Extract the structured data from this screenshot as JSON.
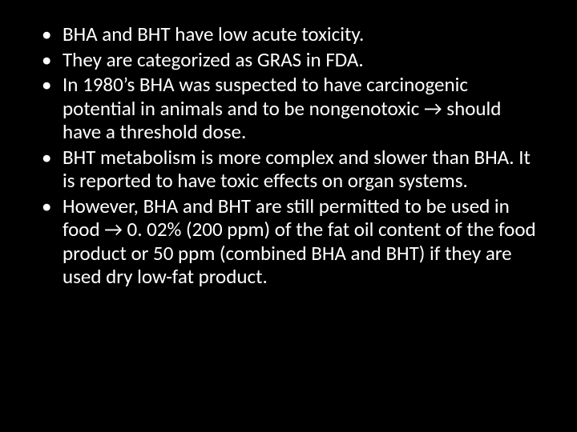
{
  "slide": {
    "background_color": "#000000",
    "text_color": "#ffffff",
    "font_family": "Calibri",
    "bullet_fontsize": 25,
    "bullets": [
      "BHA  and BHT have low acute toxicity.",
      "They are categorized as GRAS in FDA.",
      "In 1980’s BHA was suspected to  have carcinogenic potential in animals and to be nongenotoxic → should have a threshold dose.",
      "BHT metabolism is more complex and slower than BHA. It is reported to have toxic effects on organ systems.",
      "However, BHA and BHT are still permitted to be used in food → 0. 02% (200 ppm) of the fat oil content of the food product or 50 ppm (combined BHA and BHT) if they are used dry low-fat product."
    ]
  }
}
